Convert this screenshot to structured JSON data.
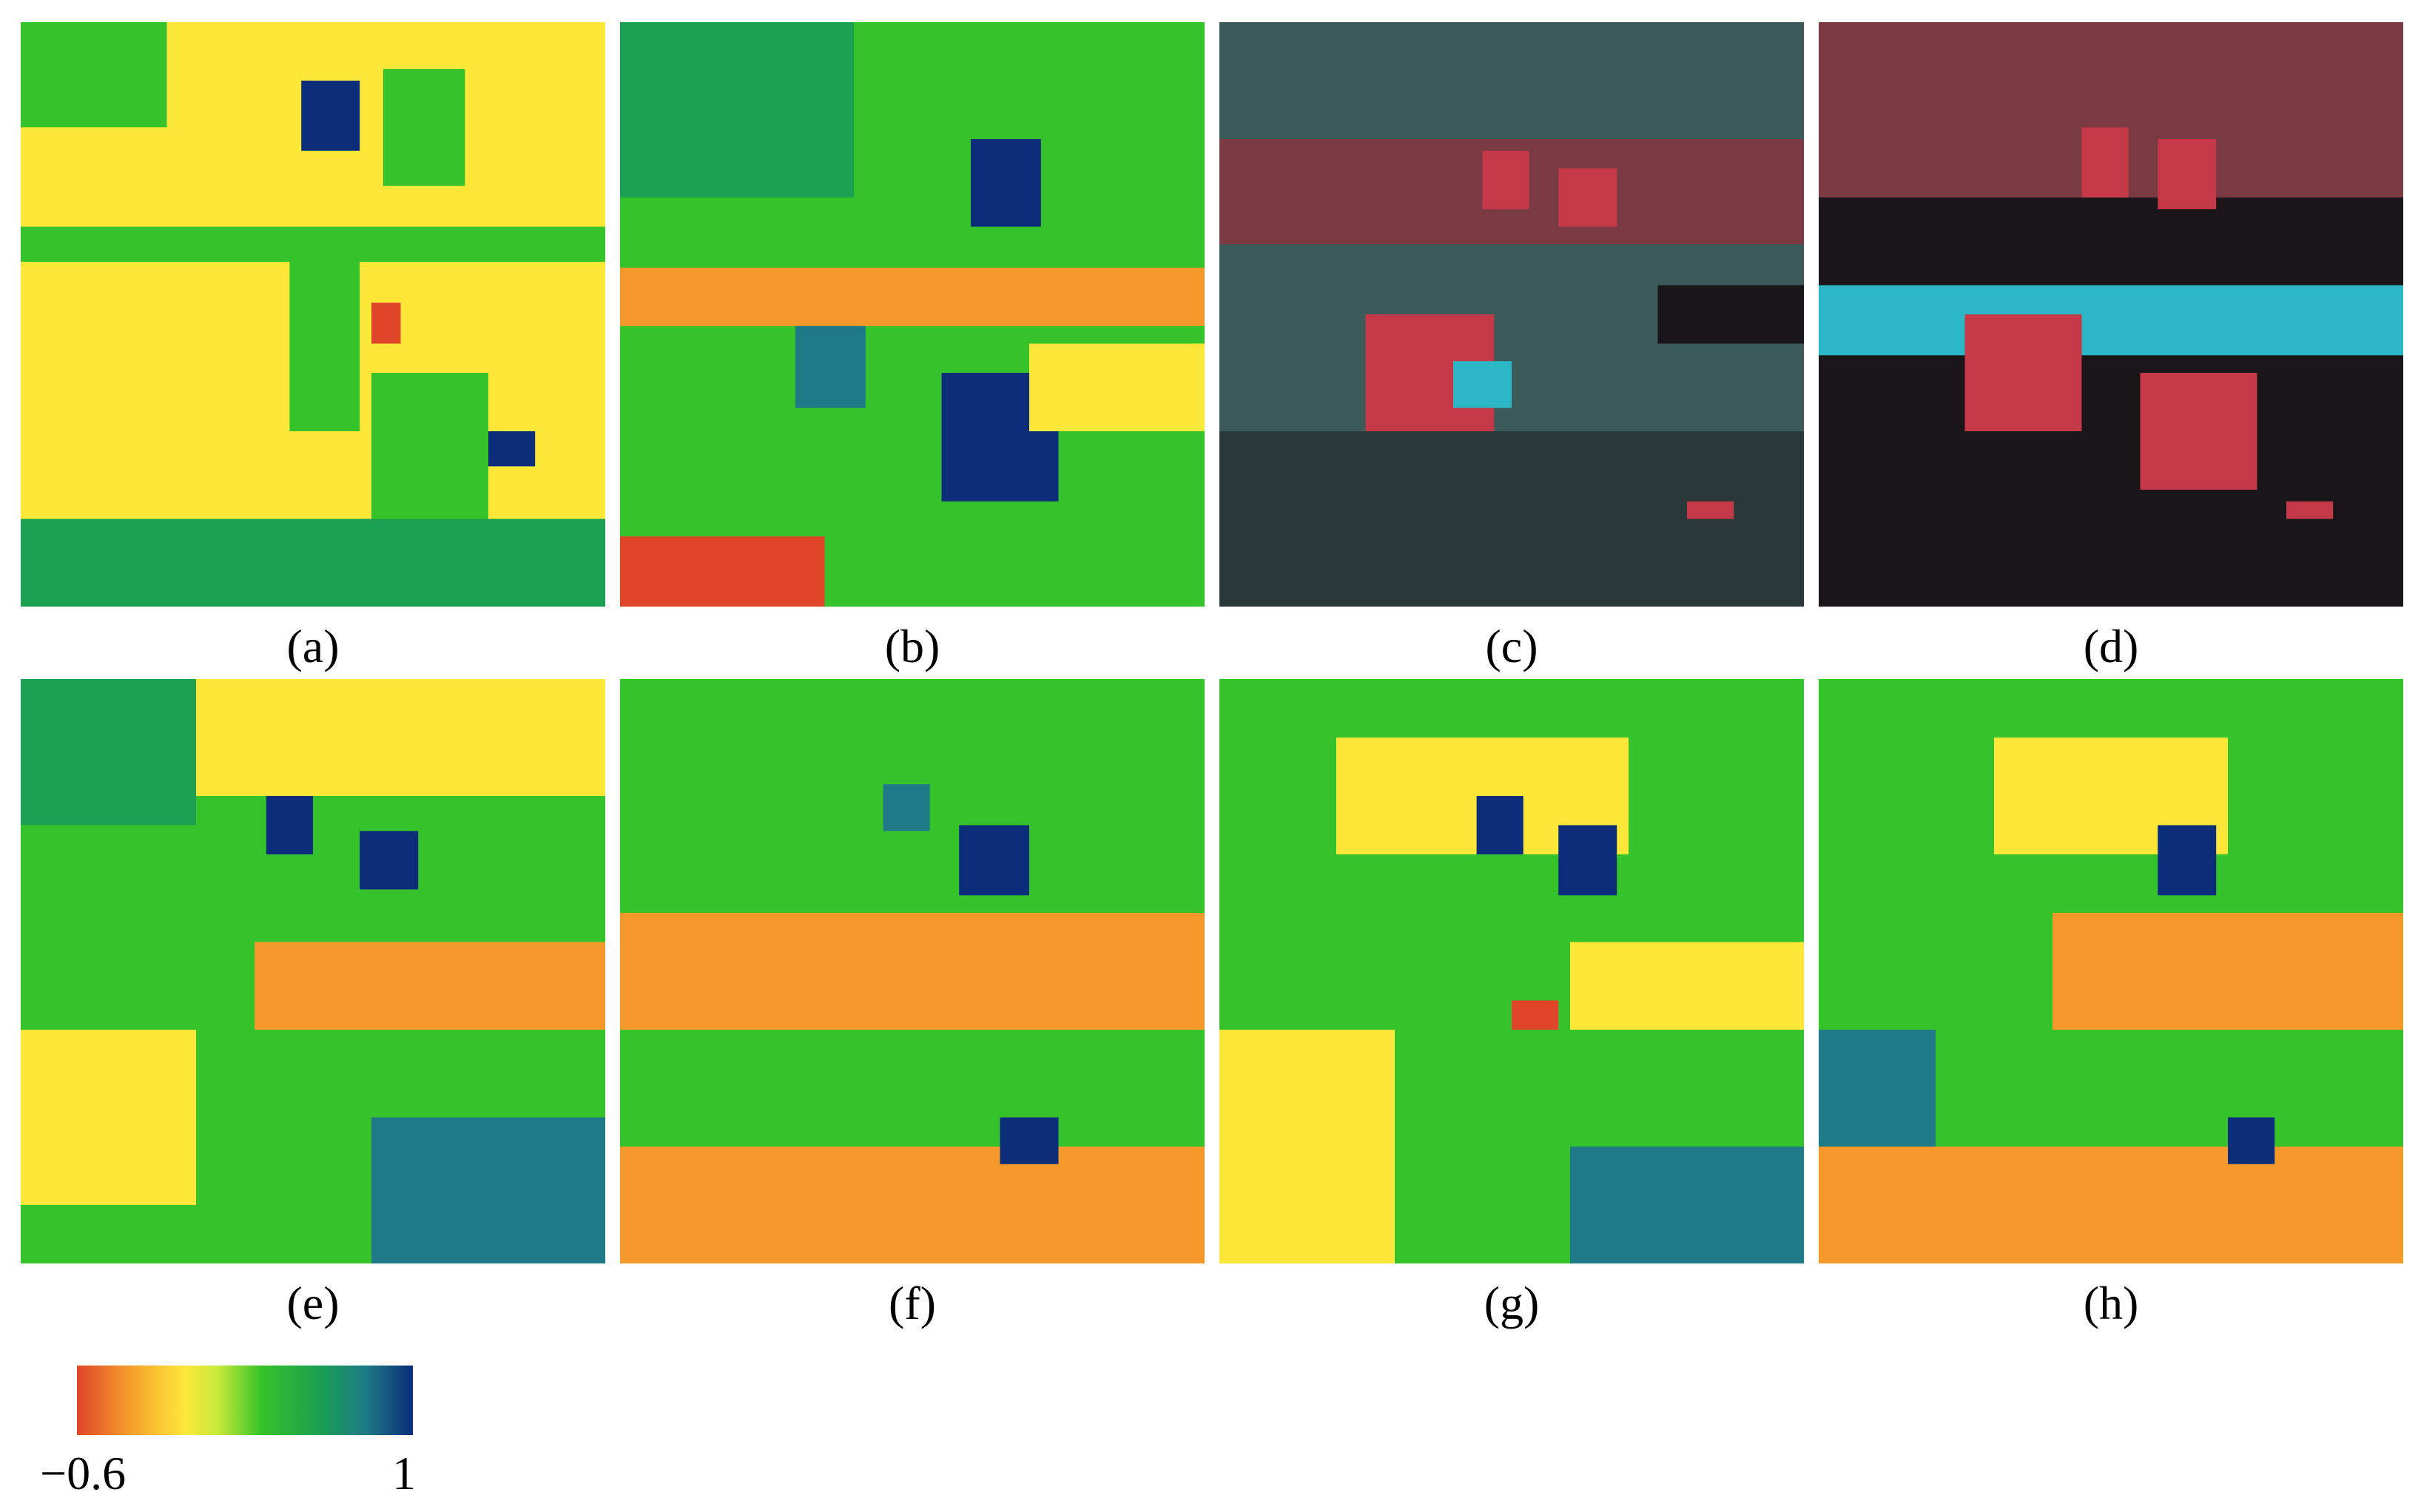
{
  "panels": [
    {
      "id": "a",
      "label": "(a)",
      "kind": "index-map"
    },
    {
      "id": "b",
      "label": "(b)",
      "kind": "index-map"
    },
    {
      "id": "c",
      "label": "(c)",
      "kind": "false-color"
    },
    {
      "id": "d",
      "label": "(d)",
      "kind": "false-color"
    },
    {
      "id": "e",
      "label": "(e)",
      "kind": "index-map"
    },
    {
      "id": "f",
      "label": "(f)",
      "kind": "index-map"
    },
    {
      "id": "g",
      "label": "(g)",
      "kind": "index-map"
    },
    {
      "id": "h",
      "label": "(h)",
      "kind": "index-map"
    }
  ],
  "colorbar": {
    "min_label": "−0.6",
    "max_label": "1",
    "colors": [
      "#e0452a",
      "#f59a2a",
      "#fde83a",
      "#c8ea3a",
      "#36c22a",
      "#1aa050",
      "#1d7a86",
      "#0b2d7a"
    ]
  },
  "false_color": {
    "colors": [
      "#3d5a5a",
      "#c43848",
      "#2bb7c5",
      "#1a1518",
      "#7a3a44"
    ]
  }
}
